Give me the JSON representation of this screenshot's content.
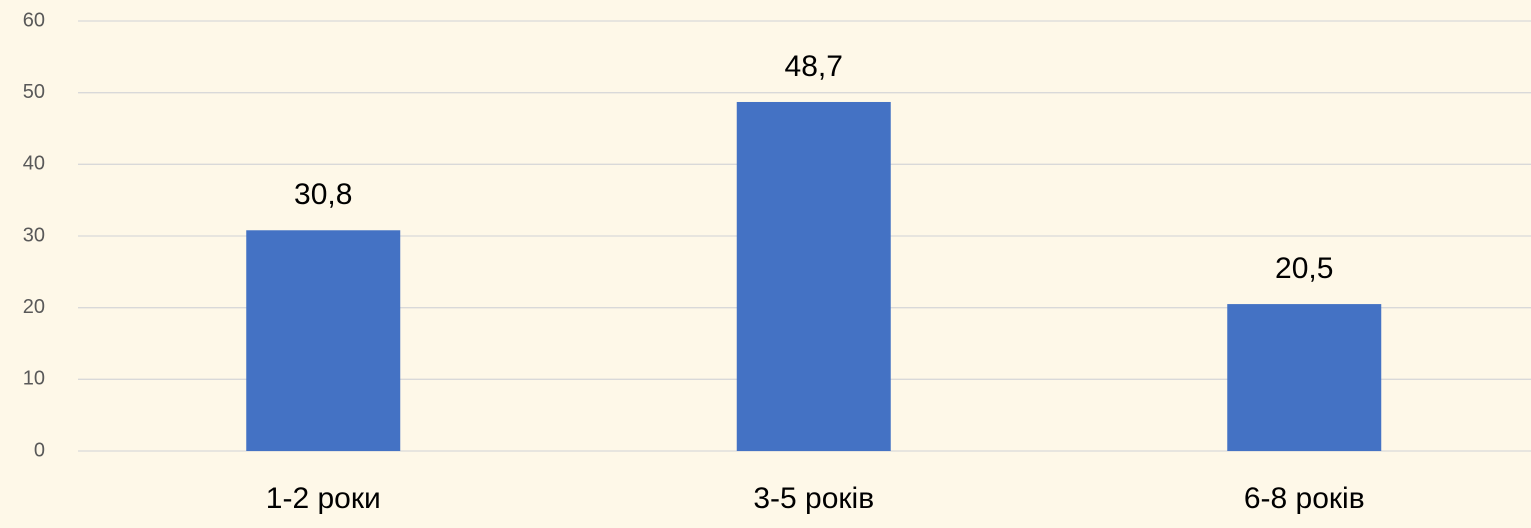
{
  "chart_data": {
    "type": "bar",
    "categories": [
      "1-2 роки",
      "3-5 років",
      "6-8 років"
    ],
    "values": [
      30.8,
      48.7,
      20.5
    ],
    "value_labels": [
      "30,8",
      "48,7",
      "20,5"
    ],
    "color": "#4472c4",
    "ylim": [
      0,
      60
    ],
    "yticks": [
      0,
      10,
      20,
      30,
      40,
      50,
      60
    ],
    "grid": true
  }
}
